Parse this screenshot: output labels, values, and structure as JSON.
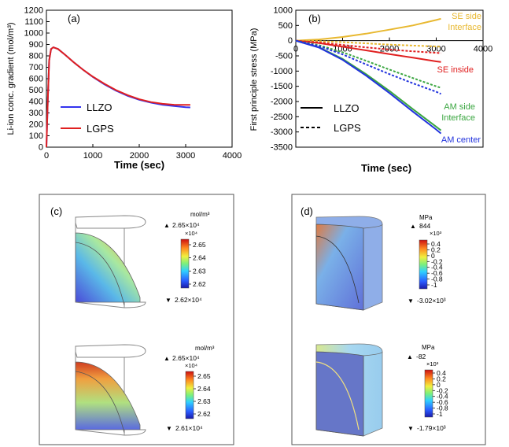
{
  "panels": {
    "a": {
      "label": "(a)"
    },
    "b": {
      "label": "(b)"
    },
    "c": {
      "label": "(c)"
    },
    "d": {
      "label": "(d)"
    }
  },
  "colors": {
    "llzo_a": "#3333ee",
    "lgps_a": "#e02020",
    "se_side": "#e8b830",
    "se_inside": "#e02020",
    "am_side": "#3aa640",
    "am_center": "#2233dd",
    "frame": "#000000"
  },
  "chart_data": [
    {
      "type": "line",
      "panel": "a",
      "xlabel": "Time (sec)",
      "ylabel": "Li-ion conc. gradient (mol/m³)",
      "xlim": [
        0,
        4000
      ],
      "ylim": [
        0,
        1200
      ],
      "xticks": [
        0,
        1000,
        2000,
        3000,
        4000
      ],
      "yticks": [
        0,
        100,
        200,
        300,
        400,
        500,
        600,
        700,
        800,
        900,
        1000,
        1100,
        1200
      ],
      "legend_placement": "bottom-left",
      "series": [
        {
          "name": "LLZO",
          "color": "#3333ee",
          "x": [
            0,
            30,
            60,
            100,
            150,
            250,
            400,
            600,
            800,
            1000,
            1250,
            1500,
            1750,
            2000,
            2250,
            2500,
            2750,
            3000,
            3100
          ],
          "y": [
            0,
            420,
            760,
            860,
            875,
            860,
            810,
            740,
            675,
            615,
            550,
            495,
            450,
            415,
            390,
            372,
            360,
            350,
            348
          ]
        },
        {
          "name": "LGPS",
          "color": "#e02020",
          "x": [
            0,
            30,
            60,
            100,
            150,
            250,
            400,
            600,
            800,
            1000,
            1250,
            1500,
            1750,
            2000,
            2250,
            2500,
            2750,
            3000,
            3100
          ],
          "y": [
            0,
            420,
            760,
            860,
            875,
            860,
            810,
            740,
            675,
            618,
            555,
            500,
            456,
            420,
            395,
            380,
            372,
            370,
            370
          ]
        }
      ]
    },
    {
      "type": "line",
      "panel": "b",
      "xlabel": "Time (sec)",
      "ylabel": "First principle stress (MPa)",
      "xlim": [
        0,
        4000
      ],
      "ylim": [
        -3500,
        1000
      ],
      "xticks": [
        0,
        1000,
        2000,
        3000,
        4000
      ],
      "yticks": [
        1000,
        500,
        0,
        -500,
        -1000,
        -1500,
        -2000,
        -2500,
        -3000,
        -3500
      ],
      "legend": [
        {
          "label": "LLZO",
          "style": "solid"
        },
        {
          "label": "LGPS",
          "style": "dashed"
        }
      ],
      "annotations": {
        "se_side_1": "SE side",
        "se_side_2": "Interface",
        "se_inside": "SE inside",
        "am_side_1": "AM side",
        "am_side_2": "Interface",
        "am_center": "AM center"
      },
      "series": [
        {
          "group": "SE side Interface",
          "material": "LLZO",
          "style": "solid",
          "color": "#e8b830",
          "x": [
            0,
            500,
            1000,
            1500,
            2000,
            2500,
            3000,
            3100
          ],
          "y": [
            0,
            40,
            120,
            230,
            360,
            500,
            680,
            720
          ]
        },
        {
          "group": "SE side Interface",
          "material": "LGPS",
          "style": "dashed",
          "color": "#e8b830",
          "x": [
            0,
            500,
            1000,
            1500,
            2000,
            2500,
            3000,
            3100
          ],
          "y": [
            0,
            -20,
            -50,
            -90,
            -130,
            -160,
            -190,
            -200
          ]
        },
        {
          "group": "SE inside",
          "material": "LLZO",
          "style": "solid",
          "color": "#e02020",
          "x": [
            0,
            500,
            1000,
            1500,
            2000,
            2500,
            3000,
            3100
          ],
          "y": [
            0,
            -80,
            -200,
            -320,
            -440,
            -560,
            -680,
            -700
          ]
        },
        {
          "group": "SE inside",
          "material": "LGPS",
          "style": "dashed",
          "color": "#e02020",
          "x": [
            0,
            500,
            1000,
            1500,
            2000,
            2500,
            3000,
            3100
          ],
          "y": [
            0,
            -60,
            -140,
            -220,
            -290,
            -350,
            -400,
            -410
          ]
        },
        {
          "group": "AM side Interface",
          "material": "LLZO",
          "style": "solid",
          "color": "#3aa640",
          "x": [
            0,
            500,
            1000,
            1500,
            2000,
            2500,
            3000,
            3100
          ],
          "y": [
            0,
            -220,
            -600,
            -1100,
            -1650,
            -2250,
            -2830,
            -2950
          ]
        },
        {
          "group": "AM side Interface",
          "material": "LGPS",
          "style": "dashed",
          "color": "#3aa640",
          "x": [
            0,
            500,
            1000,
            1500,
            2000,
            2500,
            3000,
            3100
          ],
          "y": [
            0,
            -150,
            -380,
            -660,
            -950,
            -1230,
            -1500,
            -1550
          ]
        },
        {
          "group": "AM center",
          "material": "LLZO",
          "style": "solid",
          "color": "#2233dd",
          "x": [
            0,
            500,
            1000,
            1500,
            2000,
            2500,
            3000,
            3100
          ],
          "y": [
            0,
            -230,
            -630,
            -1150,
            -1720,
            -2330,
            -2920,
            -3050
          ]
        },
        {
          "group": "AM center",
          "material": "LGPS",
          "style": "dashed",
          "color": "#2233dd",
          "x": [
            0,
            500,
            1000,
            1500,
            2000,
            2500,
            3000,
            3100
          ],
          "y": [
            0,
            -180,
            -450,
            -780,
            -1100,
            -1400,
            -1680,
            -1750
          ]
        }
      ]
    },
    {
      "type": "heatmap",
      "panel": "c",
      "plots": [
        {
          "unit": "mol/m³",
          "max_label": "2.65×10⁴",
          "min_label": "2.62×10⁴",
          "scale_label": "×10⁴",
          "ticks": [
            "2.65",
            "2.64",
            "2.63",
            "2.62"
          ]
        },
        {
          "unit": "mol/m³",
          "max_label": "2.65×10⁴",
          "min_label": "2.61×10⁴",
          "scale_label": "×10⁴",
          "ticks": [
            "2.65",
            "2.64",
            "2.63",
            "2.62"
          ]
        }
      ]
    },
    {
      "type": "heatmap",
      "panel": "d",
      "plots": [
        {
          "unit": "MPa",
          "max_label": "844",
          "min_label": "-3.02×10³",
          "scale_label": "×10³",
          "ticks": [
            "0.4",
            "0.2",
            "0",
            "-0.2",
            "-0.4",
            "-0.6",
            "-0.8",
            "-1"
          ]
        },
        {
          "unit": "MPa",
          "max_label": "-82",
          "min_label": "-1.79×10³",
          "scale_label": "×10³",
          "ticks": [
            "0.4",
            "0.2",
            "0",
            "-0.2",
            "-0.4",
            "-0.6",
            "-0.8",
            "-1"
          ]
        }
      ]
    }
  ]
}
